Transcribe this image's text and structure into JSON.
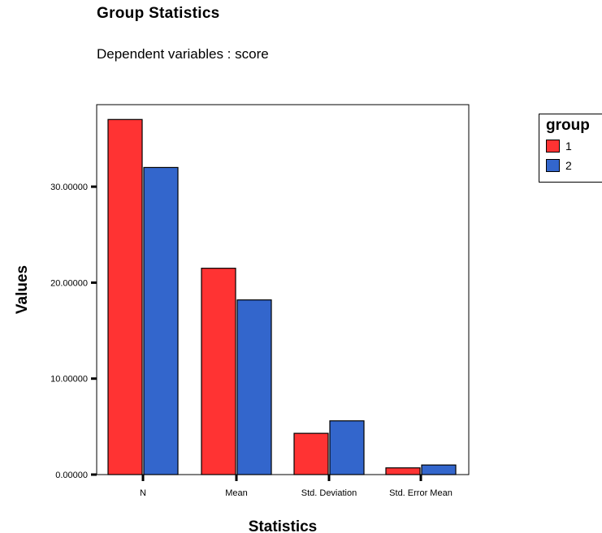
{
  "chart_data": {
    "type": "bar",
    "title": "Group Statistics",
    "subtitle": "Dependent variables : score",
    "xlabel": "Statistics",
    "ylabel": "Values",
    "categories": [
      "N",
      "Mean",
      "Std. Deviation",
      "Std. Error Mean"
    ],
    "series": [
      {
        "name": "1",
        "color": "#ff3333",
        "values": [
          37.0,
          21.5,
          4.3,
          0.7
        ]
      },
      {
        "name": "2",
        "color": "#3366cc",
        "values": [
          32.0,
          18.2,
          5.6,
          1.0
        ]
      }
    ],
    "ylim": [
      0,
      40
    ],
    "yticks": [
      0,
      10,
      20,
      30
    ],
    "ytick_labels": [
      "0.00000",
      "10.00000",
      "20.00000",
      "30.00000"
    ],
    "legend": {
      "title": "group",
      "position": "right"
    },
    "grid": false
  }
}
